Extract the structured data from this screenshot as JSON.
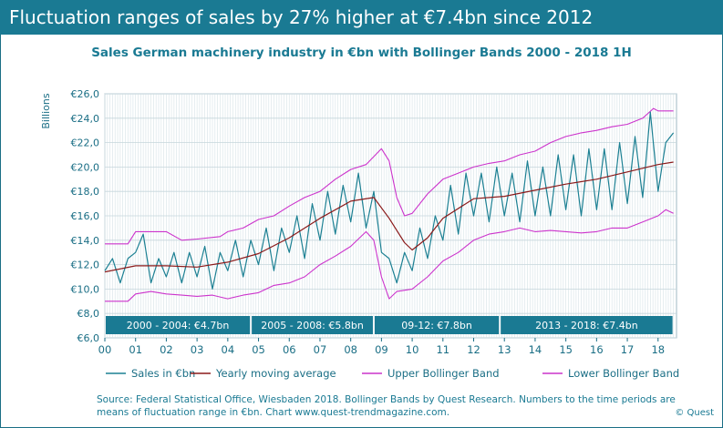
{
  "headline": "Fluctuation ranges of sales by 27% higher at €7.4bn since 2012",
  "chart_data": {
    "type": "line",
    "title": "Sales German machinery industry  in €bn  with Bollinger Bands 2000 - 2018  1H",
    "ylabel": "Billions",
    "ylim": [
      6,
      26
    ],
    "y_ticks": [
      "€26,0",
      "€24,0",
      "€22,0",
      "€20,0",
      "€18,0",
      "€16,0",
      "€14,0",
      "€12,0",
      "€10,0",
      "€8,0",
      "€6,0"
    ],
    "x_ticks": [
      "00",
      "01",
      "02",
      "03",
      "04",
      "05",
      "06",
      "07",
      "08",
      "09",
      "10",
      "11",
      "12",
      "13",
      "14",
      "15",
      "16",
      "17",
      "18"
    ],
    "grid": true,
    "legend_position": "bottom",
    "colors": {
      "sales": "#1c8093",
      "moving_average": "#8b1a1a",
      "upper_band": "#cc33cc",
      "lower_band": "#cc33cc",
      "period_box": "#1a7a93"
    },
    "periods": [
      {
        "label": "2000 - 2004: €4.7bn",
        "from": 2000.0,
        "to": 2004.75
      },
      {
        "label": "2005 - 2008: €5.8bn",
        "from": 2004.75,
        "to": 2008.75
      },
      {
        "label": "09-12: €7.8bn",
        "from": 2008.75,
        "to": 2012.85
      },
      {
        "label": "2013 - 2018: €7.4bn",
        "from": 2012.85,
        "to": 2018.5
      }
    ],
    "series": [
      {
        "name": "Sales in €bn",
        "key": "sales",
        "points": [
          [
            2000.0,
            11.5
          ],
          [
            2000.25,
            12.5
          ],
          [
            2000.5,
            10.5
          ],
          [
            2000.75,
            12.5
          ],
          [
            2001.0,
            13.0
          ],
          [
            2001.25,
            14.5
          ],
          [
            2001.5,
            10.5
          ],
          [
            2001.75,
            12.5
          ],
          [
            2002.0,
            11.0
          ],
          [
            2002.25,
            13.0
          ],
          [
            2002.5,
            10.5
          ],
          [
            2002.75,
            13.0
          ],
          [
            2003.0,
            11.0
          ],
          [
            2003.25,
            13.5
          ],
          [
            2003.5,
            10.0
          ],
          [
            2003.75,
            13.0
          ],
          [
            2004.0,
            11.5
          ],
          [
            2004.25,
            14.0
          ],
          [
            2004.5,
            11.0
          ],
          [
            2004.75,
            14.0
          ],
          [
            2005.0,
            12.0
          ],
          [
            2005.25,
            15.0
          ],
          [
            2005.5,
            11.5
          ],
          [
            2005.75,
            15.0
          ],
          [
            2006.0,
            13.0
          ],
          [
            2006.25,
            16.0
          ],
          [
            2006.5,
            12.5
          ],
          [
            2006.75,
            17.0
          ],
          [
            2007.0,
            14.0
          ],
          [
            2007.25,
            18.0
          ],
          [
            2007.5,
            14.5
          ],
          [
            2007.75,
            18.5
          ],
          [
            2008.0,
            15.5
          ],
          [
            2008.25,
            19.5
          ],
          [
            2008.5,
            15.0
          ],
          [
            2008.75,
            18.0
          ],
          [
            2009.0,
            13.0
          ],
          [
            2009.25,
            12.5
          ],
          [
            2009.5,
            10.5
          ],
          [
            2009.75,
            13.0
          ],
          [
            2010.0,
            11.5
          ],
          [
            2010.25,
            15.0
          ],
          [
            2010.5,
            12.5
          ],
          [
            2010.75,
            16.0
          ],
          [
            2011.0,
            14.0
          ],
          [
            2011.25,
            18.5
          ],
          [
            2011.5,
            14.5
          ],
          [
            2011.75,
            19.5
          ],
          [
            2012.0,
            16.0
          ],
          [
            2012.25,
            19.5
          ],
          [
            2012.5,
            15.5
          ],
          [
            2012.75,
            20.0
          ],
          [
            2013.0,
            16.0
          ],
          [
            2013.25,
            19.5
          ],
          [
            2013.5,
            15.5
          ],
          [
            2013.75,
            20.5
          ],
          [
            2014.0,
            16.0
          ],
          [
            2014.25,
            20.0
          ],
          [
            2014.5,
            16.0
          ],
          [
            2014.75,
            21.0
          ],
          [
            2015.0,
            16.5
          ],
          [
            2015.25,
            21.0
          ],
          [
            2015.5,
            16.0
          ],
          [
            2015.75,
            21.5
          ],
          [
            2016.0,
            16.5
          ],
          [
            2016.25,
            21.5
          ],
          [
            2016.5,
            16.5
          ],
          [
            2016.75,
            22.0
          ],
          [
            2017.0,
            17.0
          ],
          [
            2017.25,
            22.5
          ],
          [
            2017.5,
            17.5
          ],
          [
            2017.75,
            24.5
          ],
          [
            2018.0,
            18.0
          ],
          [
            2018.25,
            22.0
          ],
          [
            2018.5,
            22.8
          ]
        ]
      },
      {
        "name": "Yearly moving average",
        "key": "moving_average",
        "points": [
          [
            2000.0,
            11.4
          ],
          [
            2001.0,
            11.9
          ],
          [
            2002.0,
            11.9
          ],
          [
            2003.0,
            11.8
          ],
          [
            2004.0,
            12.2
          ],
          [
            2005.0,
            12.9
          ],
          [
            2006.0,
            14.2
          ],
          [
            2007.0,
            15.8
          ],
          [
            2008.0,
            17.2
          ],
          [
            2008.75,
            17.5
          ],
          [
            2009.25,
            15.8
          ],
          [
            2009.75,
            13.8
          ],
          [
            2010.0,
            13.2
          ],
          [
            2010.5,
            14.2
          ],
          [
            2011.0,
            15.8
          ],
          [
            2012.0,
            17.4
          ],
          [
            2013.0,
            17.6
          ],
          [
            2014.0,
            18.1
          ],
          [
            2015.0,
            18.6
          ],
          [
            2016.0,
            19.0
          ],
          [
            2017.0,
            19.6
          ],
          [
            2018.0,
            20.2
          ],
          [
            2018.5,
            20.4
          ]
        ]
      },
      {
        "name": "Upper Bollinger Band",
        "key": "upper_band",
        "points": [
          [
            2000.0,
            13.7
          ],
          [
            2000.75,
            13.7
          ],
          [
            2001.0,
            14.7
          ],
          [
            2002.0,
            14.7
          ],
          [
            2002.5,
            14.0
          ],
          [
            2003.0,
            14.1
          ],
          [
            2003.75,
            14.3
          ],
          [
            2004.0,
            14.7
          ],
          [
            2004.5,
            15.0
          ],
          [
            2005.0,
            15.7
          ],
          [
            2005.5,
            16.0
          ],
          [
            2006.0,
            16.8
          ],
          [
            2006.5,
            17.5
          ],
          [
            2007.0,
            18.0
          ],
          [
            2007.5,
            19.0
          ],
          [
            2008.0,
            19.8
          ],
          [
            2008.5,
            20.2
          ],
          [
            2009.0,
            21.5
          ],
          [
            2009.25,
            20.5
          ],
          [
            2009.5,
            17.5
          ],
          [
            2009.75,
            16.0
          ],
          [
            2010.0,
            16.2
          ],
          [
            2010.5,
            17.8
          ],
          [
            2011.0,
            19.0
          ],
          [
            2011.5,
            19.5
          ],
          [
            2012.0,
            20.0
          ],
          [
            2012.5,
            20.3
          ],
          [
            2013.0,
            20.5
          ],
          [
            2013.5,
            21.0
          ],
          [
            2014.0,
            21.3
          ],
          [
            2014.5,
            22.0
          ],
          [
            2015.0,
            22.5
          ],
          [
            2015.5,
            22.8
          ],
          [
            2016.0,
            23.0
          ],
          [
            2016.5,
            23.3
          ],
          [
            2017.0,
            23.5
          ],
          [
            2017.5,
            24.0
          ],
          [
            2017.85,
            24.8
          ],
          [
            2018.0,
            24.6
          ],
          [
            2018.5,
            24.6
          ]
        ]
      },
      {
        "name": "Lower Bollinger Band",
        "key": "lower_band",
        "points": [
          [
            2000.0,
            9.0
          ],
          [
            2000.75,
            9.0
          ],
          [
            2001.0,
            9.6
          ],
          [
            2001.5,
            9.8
          ],
          [
            2002.0,
            9.6
          ],
          [
            2002.5,
            9.5
          ],
          [
            2003.0,
            9.4
          ],
          [
            2003.5,
            9.5
          ],
          [
            2004.0,
            9.2
          ],
          [
            2004.5,
            9.5
          ],
          [
            2005.0,
            9.7
          ],
          [
            2005.5,
            10.3
          ],
          [
            2006.0,
            10.5
          ],
          [
            2006.5,
            11.0
          ],
          [
            2007.0,
            12.0
          ],
          [
            2007.5,
            12.7
          ],
          [
            2008.0,
            13.5
          ],
          [
            2008.5,
            14.7
          ],
          [
            2008.75,
            14.0
          ],
          [
            2009.0,
            11.0
          ],
          [
            2009.25,
            9.2
          ],
          [
            2009.5,
            9.8
          ],
          [
            2010.0,
            10.0
          ],
          [
            2010.5,
            11.0
          ],
          [
            2011.0,
            12.3
          ],
          [
            2011.5,
            13.0
          ],
          [
            2012.0,
            14.0
          ],
          [
            2012.5,
            14.5
          ],
          [
            2013.0,
            14.7
          ],
          [
            2013.5,
            15.0
          ],
          [
            2014.0,
            14.7
          ],
          [
            2014.5,
            14.8
          ],
          [
            2015.0,
            14.7
          ],
          [
            2015.5,
            14.6
          ],
          [
            2016.0,
            14.7
          ],
          [
            2016.5,
            15.0
          ],
          [
            2017.0,
            15.0
          ],
          [
            2017.5,
            15.5
          ],
          [
            2018.0,
            16.0
          ],
          [
            2018.25,
            16.5
          ],
          [
            2018.5,
            16.2
          ]
        ]
      }
    ]
  },
  "footer": {
    "source": "Source: Federal Statistical Office, Wiesbaden 2018. Bollinger Bands by Quest Research. Numbers to the time periods are means of  fluctuation range in €bn. Chart www.quest-trendmagazine.com.",
    "copyright": "© Quest"
  }
}
